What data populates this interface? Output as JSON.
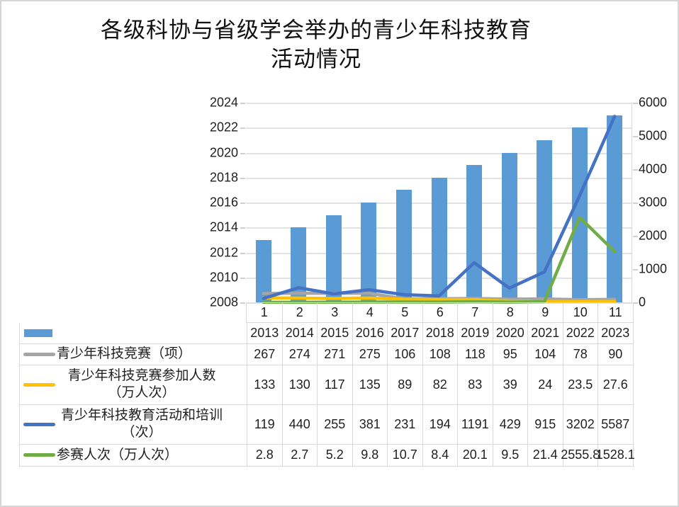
{
  "title": {
    "line1": "各级科协与省级学会举办的青少年科技教育",
    "line2": "活动情况"
  },
  "colors": {
    "bar": "#5B9BD5",
    "gray_line": "#A5A5A5",
    "yellow_line": "#FFC000",
    "blue_line": "#4472C4",
    "green_line": "#70AD47",
    "grid": "#e2e2e2",
    "table_border": "#d9d9d9"
  },
  "chart_data": {
    "type": "combo-bar-line",
    "title": "各级科协与省级学会举办的青少年科技教育活动情况",
    "categories": [
      "1",
      "2",
      "3",
      "4",
      "5",
      "6",
      "7",
      "8",
      "9",
      "10",
      "11"
    ],
    "left_axis": {
      "min": 2008,
      "max": 2024,
      "step": 2
    },
    "right_axis": {
      "min": 0,
      "max": 6000,
      "step": 1000
    },
    "grid": true,
    "legend_position": "data-table",
    "bar_series": {
      "name": "",
      "axis": "left",
      "color": "#5B9BD5",
      "values": [
        2013,
        2014,
        2015,
        2016,
        2017,
        2018,
        2019,
        2020,
        2021,
        2022,
        2023
      ]
    },
    "line_series": [
      {
        "name": "青少年科技竞赛（项）",
        "axis": "right",
        "color": "#A5A5A5",
        "values": [
          267,
          274,
          271,
          275,
          106,
          108,
          118,
          95,
          104,
          78,
          90
        ]
      },
      {
        "name": "青少年科技竞赛参加人数（万人次）",
        "axis": "right",
        "color": "#FFC000",
        "values": [
          133,
          130,
          117,
          135,
          89,
          82,
          83,
          39,
          24,
          23.5,
          27.6
        ]
      },
      {
        "name": "青少年科技教育活动和培训（次）",
        "axis": "right",
        "color": "#4472C4",
        "values": [
          119,
          440,
          255,
          381,
          231,
          194,
          1191,
          429,
          915,
          3202,
          5587
        ]
      },
      {
        "name": "参赛人次（万人次）",
        "axis": "right",
        "color": "#70AD47",
        "values": [
          2.8,
          2.7,
          5.2,
          9.8,
          10.7,
          8.4,
          20.1,
          9.5,
          21.4,
          2555.8,
          1528.1
        ]
      }
    ]
  }
}
